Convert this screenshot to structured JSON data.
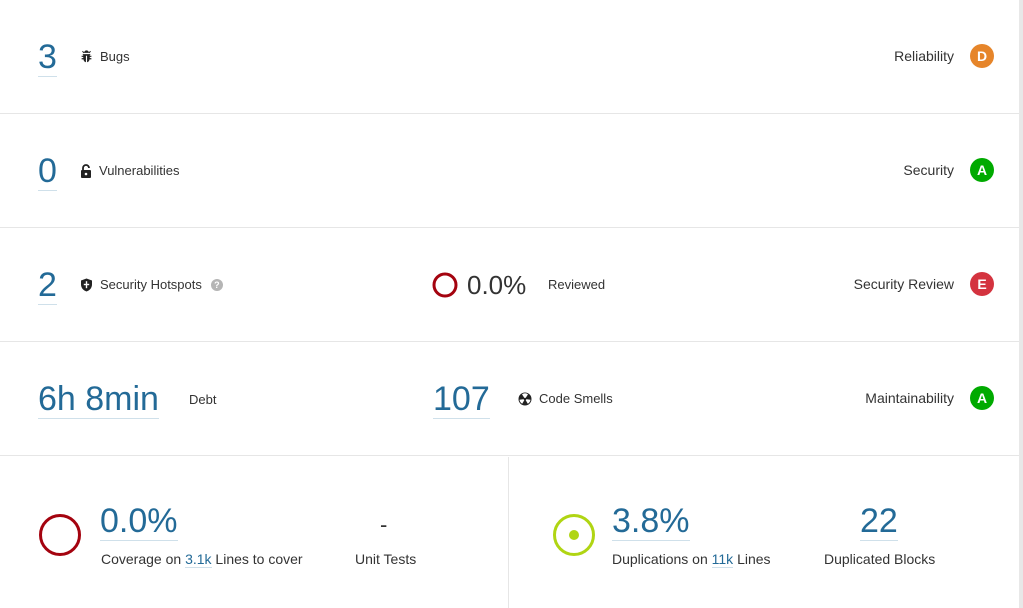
{
  "reliability": {
    "count": "3",
    "label": "Bugs",
    "icon": "bug-icon",
    "rating_label": "Reliability",
    "rating": "D",
    "rating_color": "#e6852a"
  },
  "security": {
    "count": "0",
    "label": "Vulnerabilities",
    "icon": "lock-icon",
    "rating_label": "Security",
    "rating": "A",
    "rating_color": "#00aa00"
  },
  "hotspots": {
    "count": "2",
    "label": "Security Hotspots",
    "help": "?",
    "reviewed_value": "0.0%",
    "reviewed_label": "Reviewed",
    "rating_label": "Security Review",
    "rating": "E",
    "rating_color": "#d4333f"
  },
  "maintainability": {
    "debt": "6h 8min",
    "debt_label": "Debt",
    "smells": "107",
    "smells_label": "Code Smells",
    "rating_label": "Maintainability",
    "rating": "A",
    "rating_color": "#00aa00"
  },
  "coverage": {
    "value": "0.0%",
    "label_prefix": "Coverage on",
    "lines": "3.1k",
    "label_suffix": "Lines to cover",
    "unit_tests_value": "-",
    "unit_tests_label": "Unit Tests",
    "ring_color": "#a4030f"
  },
  "duplications": {
    "value": "3.8%",
    "label_prefix": "Duplications on",
    "lines": "11k",
    "label_suffix": "Lines",
    "blocks_value": "22",
    "blocks_label": "Duplicated Blocks",
    "ring_color": "#b0d513"
  }
}
